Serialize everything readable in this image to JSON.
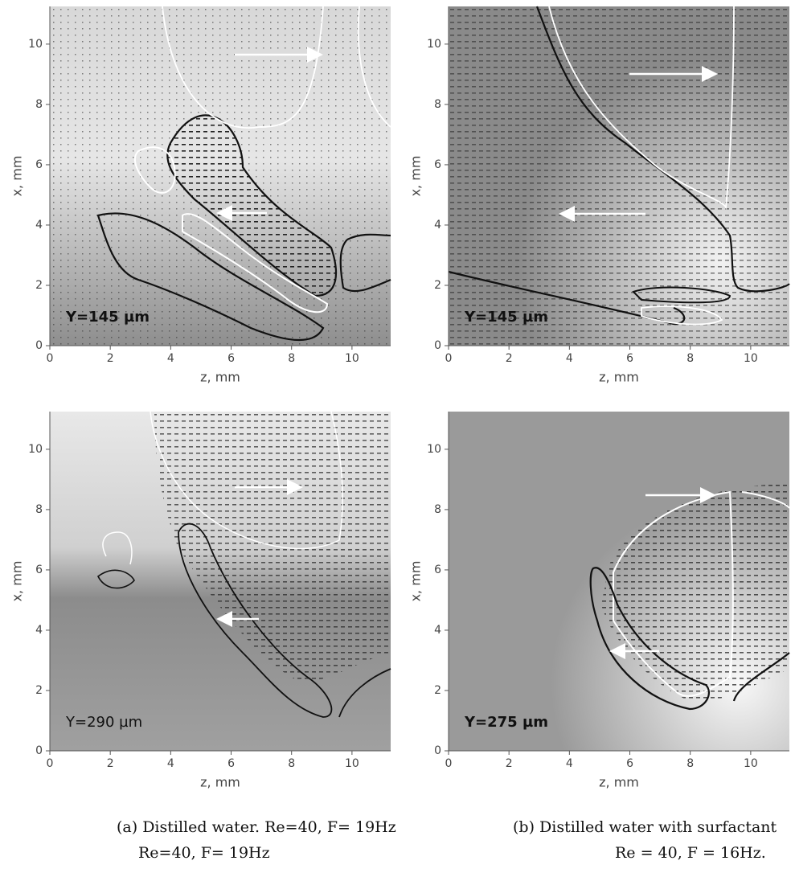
{
  "panels": [
    {
      "xlim": [
        0,
        11.28
      ],
      "ylim": [
        0,
        11.25
      ],
      "xticks": [
        0,
        2,
        4,
        6,
        8,
        10
      ],
      "yticks": [
        0,
        2,
        4,
        6,
        8,
        10
      ],
      "xlabel": "z, mm",
      "ylabel": "x, mm",
      "annotation": "Y=145 µm",
      "annotation_bold": true
    },
    {
      "xlim": [
        0,
        11.28
      ],
      "ylim": [
        0,
        11.25
      ],
      "xticks": [
        0,
        2,
        4,
        6,
        8,
        10
      ],
      "yticks": [
        0,
        2,
        4,
        6,
        8,
        10
      ],
      "xlabel": "z, mm",
      "ylabel": "x, mm",
      "annotation": "Y=145 µm",
      "annotation_bold": true
    },
    {
      "xlim": [
        0,
        11.28
      ],
      "ylim": [
        0,
        11.25
      ],
      "xticks": [
        0,
        2,
        4,
        6,
        8,
        10
      ],
      "yticks": [
        0,
        2,
        4,
        6,
        8,
        10
      ],
      "xlabel": "z, mm",
      "ylabel": "x, mm",
      "annotation": "Y=290 µm",
      "annotation_bold": false
    },
    {
      "xlim": [
        0,
        11.28
      ],
      "ylim": [
        0,
        11.25
      ],
      "xticks": [
        0,
        2,
        4,
        6,
        8,
        10
      ],
      "yticks": [
        0,
        2,
        4,
        6,
        8,
        10
      ],
      "xlabel": "z, mm",
      "ylabel": "x, mm",
      "annotation": "Y=275 µm",
      "annotation_bold": true
    }
  ],
  "captions": [
    {
      "line1": "(a) Distilled water. Re=40, F= 19Hz",
      "line2": "Re=40, F= 19Hz"
    },
    {
      "line1": "(b) Distilled water with surfactant",
      "line2": "Re = 40, F = 16Hz."
    }
  ]
}
